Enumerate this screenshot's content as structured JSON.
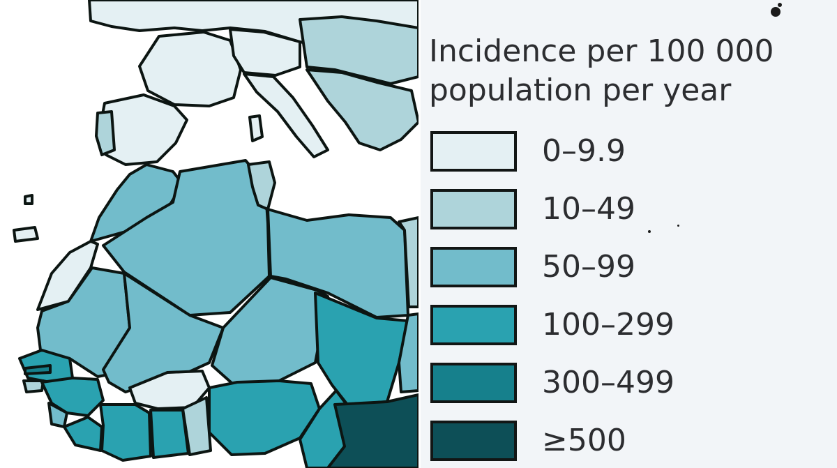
{
  "legend": {
    "title_line1": "Incidence per 100 000",
    "title_line2": "population per year",
    "classes": [
      {
        "label": "0–9.9",
        "color": "#e4f0f3"
      },
      {
        "label": "10–49",
        "color": "#aed4da"
      },
      {
        "label": "50–99",
        "color": "#72bccb"
      },
      {
        "label": "100–299",
        "color": "#2aa2b0"
      },
      {
        "label": "300–499",
        "color": "#16808c"
      },
      {
        "label": "≥500",
        "color": "#0d4f57"
      }
    ]
  },
  "map": {
    "sea_color": "#ffffff",
    "border_color": "#0c1512"
  }
}
